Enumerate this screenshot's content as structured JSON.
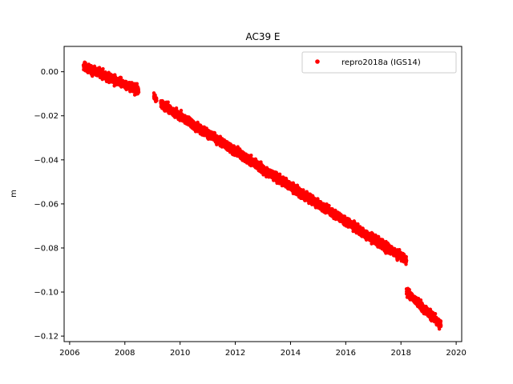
{
  "chart_data": {
    "type": "scatter",
    "title": "AC39 E",
    "xlabel": "",
    "ylabel": "m",
    "xlim": [
      2005.8,
      2020.2
    ],
    "ylim": [
      -0.1225,
      0.0115
    ],
    "xticks": [
      2006,
      2008,
      2010,
      2012,
      2014,
      2016,
      2018,
      2020
    ],
    "yticks": [
      0.0,
      -0.02,
      -0.04,
      -0.06,
      -0.08,
      -0.1,
      -0.12
    ],
    "xtick_labels": [
      "2006",
      "2008",
      "2010",
      "2012",
      "2014",
      "2016",
      "2018",
      "2020"
    ],
    "ytick_labels": [
      "0.00",
      "−0.02",
      "−0.04",
      "−0.06",
      "−0.08",
      "−0.10",
      "−0.12"
    ],
    "grid": false,
    "legend_position": "top-right",
    "series": [
      {
        "name": "repro2018a (IGS14)",
        "color": "#ff0000",
        "marker": "circle",
        "segments": [
          {
            "x": [
              2006.5,
              2008.5
            ],
            "y": [
              0.0025,
              -0.0085
            ],
            "noise": 0.002
          },
          {
            "x": [
              2009.05,
              2009.15
            ],
            "y": [
              -0.011,
              -0.013
            ],
            "noise": 0.0015
          },
          {
            "x": [
              2009.3,
              2018.2
            ],
            "y": [
              -0.0145,
              -0.0855
            ],
            "noise": 0.002
          },
          {
            "x": [
              2018.2,
              2019.45
            ],
            "y": [
              -0.1,
              -0.115
            ],
            "noise": 0.002
          }
        ]
      }
    ]
  }
}
